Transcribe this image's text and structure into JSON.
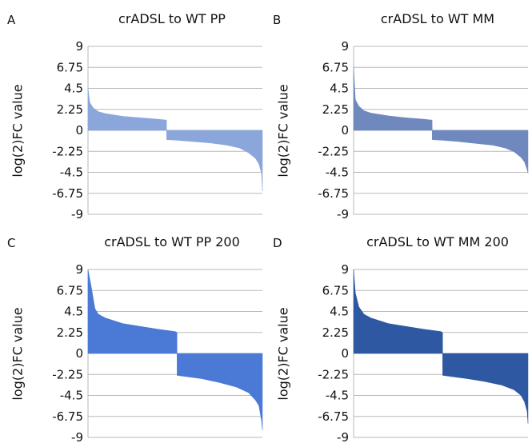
{
  "chart_data": [
    {
      "panel": "A",
      "type": "area",
      "title": "crADSL to WT PP",
      "ylabel": "log(2)FC value",
      "ylim": [
        -9,
        9
      ],
      "yticks": [
        "9",
        "6.75",
        "4.5",
        "2.25",
        "0",
        "-2.25",
        "-4.5",
        "-6.75",
        "-9"
      ],
      "grid": true,
      "color": "#8aa6db",
      "x": [
        0,
        0.01,
        0.03,
        0.06,
        0.1,
        0.15,
        0.2,
        0.3,
        0.4,
        0.45,
        0.451,
        0.5,
        0.6,
        0.7,
        0.8,
        0.87,
        0.92,
        0.96,
        0.98,
        0.995,
        1.0
      ],
      "values": [
        4.5,
        3.0,
        2.4,
        2.0,
        1.8,
        1.65,
        1.5,
        1.35,
        1.2,
        1.1,
        -1.0,
        -1.05,
        -1.2,
        -1.35,
        -1.6,
        -1.9,
        -2.4,
        -3.0,
        -3.6,
        -4.6,
        -6.5
      ]
    },
    {
      "panel": "B",
      "type": "area",
      "title": "crADSL to WT MM",
      "ylabel": "log(2)FC value",
      "ylim": [
        -9,
        9
      ],
      "yticks": [
        "9",
        "6.75",
        "4.5",
        "2.25",
        "0",
        "-2.25",
        "-4.5",
        "-6.75",
        "-9"
      ],
      "grid": true,
      "color": "#6f89bf",
      "x": [
        0,
        0.01,
        0.03,
        0.06,
        0.1,
        0.15,
        0.2,
        0.3,
        0.4,
        0.45,
        0.451,
        0.5,
        0.6,
        0.7,
        0.8,
        0.87,
        0.92,
        0.96,
        0.98,
        0.995,
        1.0
      ],
      "values": [
        6.8,
        3.3,
        2.6,
        2.1,
        1.85,
        1.7,
        1.55,
        1.35,
        1.2,
        1.1,
        -1.0,
        -1.05,
        -1.2,
        -1.4,
        -1.6,
        -1.9,
        -2.3,
        -2.9,
        -3.4,
        -4.2,
        -4.6
      ]
    },
    {
      "panel": "C",
      "type": "area",
      "title": "crADSL to WT PP 200",
      "ylabel": "log(2)FC value",
      "ylim": [
        -9,
        9
      ],
      "yticks": [
        "9",
        "6.75",
        "4.5",
        "2.25",
        "0",
        "-2.25",
        "-4.5",
        "-6.75",
        "-9"
      ],
      "grid": true,
      "color": "#4a79d6",
      "x": [
        0,
        0.02,
        0.04,
        0.06,
        0.1,
        0.15,
        0.2,
        0.3,
        0.4,
        0.5,
        0.51,
        0.511,
        0.55,
        0.65,
        0.75,
        0.85,
        0.92,
        0.96,
        0.98,
        0.995,
        1.0
      ],
      "values": [
        9.0,
        7.0,
        4.8,
        4.2,
        3.8,
        3.5,
        3.2,
        2.9,
        2.6,
        2.35,
        2.25,
        -2.35,
        -2.45,
        -2.7,
        -3.1,
        -3.6,
        -4.2,
        -5.0,
        -5.6,
        -7.2,
        -8.2
      ]
    },
    {
      "panel": "D",
      "type": "area",
      "title": "crADSL to WT MM 200",
      "ylabel": "log(2)FC value",
      "ylim": [
        -9,
        9
      ],
      "yticks": [
        "9",
        "6.75",
        "4.5",
        "2.25",
        "0",
        "-2.25",
        "-4.5",
        "-6.75",
        "-9"
      ],
      "grid": true,
      "color": "#2f58a2",
      "x": [
        0,
        0.01,
        0.03,
        0.06,
        0.1,
        0.15,
        0.2,
        0.3,
        0.4,
        0.5,
        0.51,
        0.511,
        0.55,
        0.65,
        0.75,
        0.85,
        0.92,
        0.96,
        0.98,
        0.995,
        1.0
      ],
      "values": [
        9.0,
        6.5,
        5.0,
        4.2,
        3.8,
        3.5,
        3.2,
        2.9,
        2.6,
        2.35,
        2.25,
        -2.35,
        -2.45,
        -2.7,
        -3.0,
        -3.4,
        -3.9,
        -4.5,
        -5.2,
        -6.2,
        -7.5
      ]
    }
  ]
}
